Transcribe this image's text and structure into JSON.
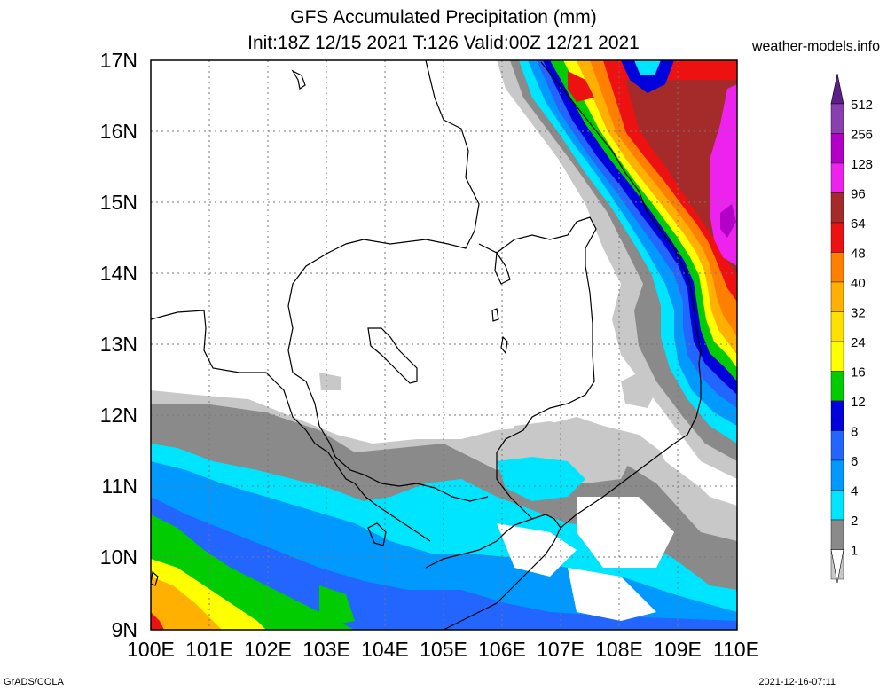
{
  "header": {
    "title_line1": "GFS Accumulated Precipitation (mm)",
    "title_line2": "Init:18Z 12/15 2021 T:126 Valid:00Z 12/21 2021",
    "site": "weather-models.info"
  },
  "footer": {
    "left": "GrADS/COLA",
    "right": "2021-12-16-07:11"
  },
  "map": {
    "lat_labels": [
      "17N",
      "16N",
      "15N",
      "14N",
      "13N",
      "12N",
      "11N",
      "10N",
      "9N"
    ],
    "lon_labels": [
      "100E",
      "101E",
      "102E",
      "103E",
      "104E",
      "105E",
      "106E",
      "107E",
      "108E",
      "109E",
      "110E"
    ],
    "lat_range": [
      9,
      17
    ],
    "lon_range": [
      100,
      110
    ]
  },
  "colorbar": {
    "levels": [
      {
        "label": "512",
        "color": "#8a3fb0"
      },
      {
        "label": "256",
        "color": "#b300c8"
      },
      {
        "label": "128",
        "color": "#ee22ee"
      },
      {
        "label": "96",
        "color": "#a52a2a"
      },
      {
        "label": "64",
        "color": "#ee1111"
      },
      {
        "label": "48",
        "color": "#ff7f00"
      },
      {
        "label": "40",
        "color": "#ffb000"
      },
      {
        "label": "32",
        "color": "#ffe000"
      },
      {
        "label": "24",
        "color": "#ffff00"
      },
      {
        "label": "16",
        "color": "#00cc00"
      },
      {
        "label": "12",
        "color": "#0000dd"
      },
      {
        "label": "8",
        "color": "#2266ff"
      },
      {
        "label": "6",
        "color": "#0099ff"
      },
      {
        "label": "4",
        "color": "#00e5ff"
      },
      {
        "label": "2",
        "color": "#8a8a8a"
      },
      {
        "label": "1",
        "color": "#c8c8c8"
      }
    ],
    "top_arrow_color": "#5a1f8a"
  }
}
